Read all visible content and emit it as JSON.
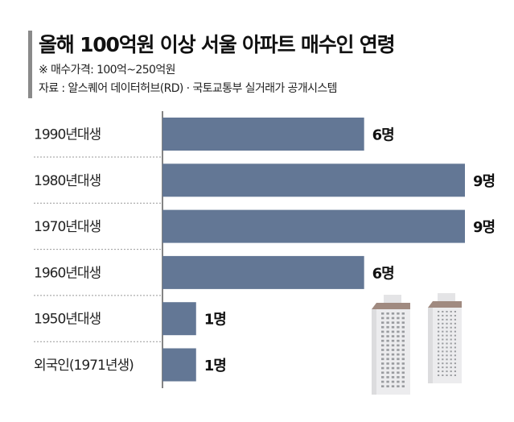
{
  "chart_data": {
    "type": "bar",
    "orientation": "horizontal",
    "title": "올해 100억원 이상 서울 아파트 매수인 연령",
    "subtitle": "※ 매수가격: 100억~250억원",
    "source": "자료 : 알스퀘어 데이터허브(RD) · 국토교통부 실거래가 공개시스템",
    "categories": [
      "1990년대생",
      "1980년대생",
      "1970년대생",
      "1960년대생",
      "1950년대생",
      "외국인(1971년생)"
    ],
    "values": [
      6,
      9,
      9,
      6,
      1,
      1
    ],
    "value_labels": [
      "6명",
      "9명",
      "9명",
      "6명",
      "1명",
      "1명"
    ],
    "unit": "명",
    "xlim": [
      0,
      9
    ],
    "grid": false,
    "bar_color": "#637795"
  }
}
